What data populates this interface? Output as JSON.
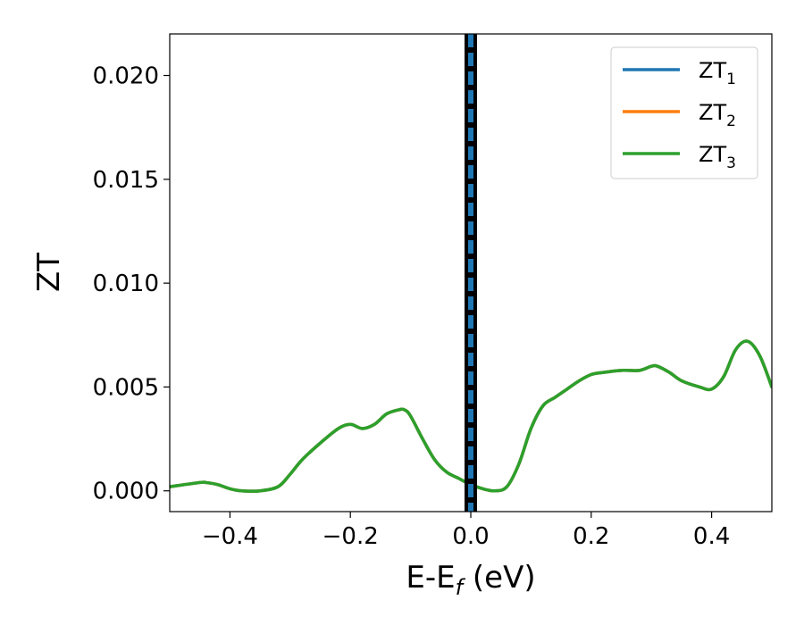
{
  "chart_data": {
    "type": "line",
    "xlabel": "E-E",
    "xlabel_sub": "f",
    "xlabel_unit": " (eV)",
    "ylabel": "ZT",
    "xlim": [
      -0.5,
      0.5
    ],
    "ylim": [
      -0.001,
      0.022
    ],
    "grid": false,
    "legend_position": "top-right",
    "x_ticks": [
      -0.4,
      -0.2,
      0.0,
      0.2,
      0.4
    ],
    "x_tick_labels": [
      "−0.4",
      "−0.2",
      "0.0",
      "0.2",
      "0.4"
    ],
    "y_ticks": [
      0.0,
      0.005,
      0.01,
      0.015,
      0.02
    ],
    "y_tick_labels": [
      "0.000",
      "0.005",
      "0.010",
      "0.015",
      "0.020"
    ],
    "vertical_lines": [
      {
        "x": 0.0,
        "color": "#000000",
        "style": "solid"
      },
      {
        "x": 0.0,
        "color": "#1f77b4",
        "style": "dashed"
      }
    ],
    "series": [
      {
        "name": "ZT",
        "name_sub": "1",
        "color": "#1f77b4",
        "x": [
          -0.5,
          -0.45,
          -0.44,
          -0.42,
          -0.4,
          -0.38,
          -0.35,
          -0.32,
          -0.3,
          -0.28,
          -0.25,
          -0.22,
          -0.2,
          -0.18,
          -0.16,
          -0.14,
          -0.12,
          -0.11,
          -0.1,
          -0.08,
          -0.06,
          -0.04,
          -0.02,
          0.0,
          0.02,
          0.04,
          0.06,
          0.08,
          0.1,
          0.12,
          0.14,
          0.16,
          0.18,
          0.2,
          0.22,
          0.25,
          0.28,
          0.3,
          0.31,
          0.33,
          0.35,
          0.38,
          0.4,
          0.42,
          0.44,
          0.46,
          0.48,
          0.5
        ],
        "y": [
          0.0002,
          0.0004,
          0.0004,
          0.0003,
          0.0001,
          0.0,
          0.0,
          0.0002,
          0.0008,
          0.0015,
          0.0023,
          0.003,
          0.0032,
          0.003,
          0.0032,
          0.0037,
          0.0039,
          0.0039,
          0.0036,
          0.0025,
          0.0015,
          0.0009,
          0.0006,
          0.0003,
          0.0001,
          0.0,
          0.0002,
          0.0013,
          0.003,
          0.0041,
          0.0045,
          0.0049,
          0.0053,
          0.0056,
          0.0057,
          0.0058,
          0.0058,
          0.006,
          0.006,
          0.0057,
          0.0053,
          0.005,
          0.0049,
          0.0055,
          0.0068,
          0.0072,
          0.0065,
          0.005
        ]
      },
      {
        "name": "ZT",
        "name_sub": "2",
        "color": "#ff7f0e",
        "x": [
          -0.5,
          -0.45,
          -0.44,
          -0.42,
          -0.4,
          -0.38,
          -0.35,
          -0.32,
          -0.3,
          -0.28,
          -0.25,
          -0.22,
          -0.2,
          -0.18,
          -0.16,
          -0.14,
          -0.12,
          -0.11,
          -0.1,
          -0.08,
          -0.06,
          -0.04,
          -0.02,
          0.0,
          0.02,
          0.04,
          0.06,
          0.08,
          0.1,
          0.12,
          0.14,
          0.16,
          0.18,
          0.2,
          0.22,
          0.25,
          0.28,
          0.3,
          0.31,
          0.33,
          0.35,
          0.38,
          0.4,
          0.42,
          0.44,
          0.46,
          0.48,
          0.5
        ],
        "y": [
          0.0002,
          0.0004,
          0.0004,
          0.0003,
          0.0001,
          0.0,
          0.0,
          0.0002,
          0.0008,
          0.0015,
          0.0023,
          0.003,
          0.0032,
          0.003,
          0.0032,
          0.0037,
          0.0039,
          0.0039,
          0.0036,
          0.0025,
          0.0015,
          0.0009,
          0.0006,
          0.0003,
          0.0001,
          0.0,
          0.0002,
          0.0013,
          0.003,
          0.0041,
          0.0045,
          0.0049,
          0.0053,
          0.0056,
          0.0057,
          0.0058,
          0.0058,
          0.006,
          0.006,
          0.0057,
          0.0053,
          0.005,
          0.0049,
          0.0055,
          0.0068,
          0.0072,
          0.0065,
          0.005
        ]
      },
      {
        "name": "ZT",
        "name_sub": "3",
        "color": "#2ca02c",
        "x": [
          -0.5,
          -0.45,
          -0.44,
          -0.42,
          -0.4,
          -0.38,
          -0.35,
          -0.32,
          -0.3,
          -0.28,
          -0.25,
          -0.22,
          -0.2,
          -0.18,
          -0.16,
          -0.14,
          -0.12,
          -0.11,
          -0.1,
          -0.08,
          -0.06,
          -0.04,
          -0.02,
          0.0,
          0.02,
          0.04,
          0.06,
          0.08,
          0.1,
          0.12,
          0.14,
          0.16,
          0.18,
          0.2,
          0.22,
          0.25,
          0.28,
          0.3,
          0.31,
          0.33,
          0.35,
          0.38,
          0.4,
          0.42,
          0.44,
          0.46,
          0.48,
          0.5
        ],
        "y": [
          0.0002,
          0.0004,
          0.0004,
          0.0003,
          0.0001,
          0.0,
          0.0,
          0.0002,
          0.0008,
          0.0015,
          0.0023,
          0.003,
          0.0032,
          0.003,
          0.0032,
          0.0037,
          0.0039,
          0.0039,
          0.0036,
          0.0025,
          0.0015,
          0.0009,
          0.0006,
          0.0003,
          0.0001,
          0.0,
          0.0002,
          0.0013,
          0.003,
          0.0041,
          0.0045,
          0.0049,
          0.0053,
          0.0056,
          0.0057,
          0.0058,
          0.0058,
          0.006,
          0.006,
          0.0057,
          0.0053,
          0.005,
          0.0049,
          0.0055,
          0.0068,
          0.0072,
          0.0065,
          0.005
        ]
      }
    ]
  }
}
